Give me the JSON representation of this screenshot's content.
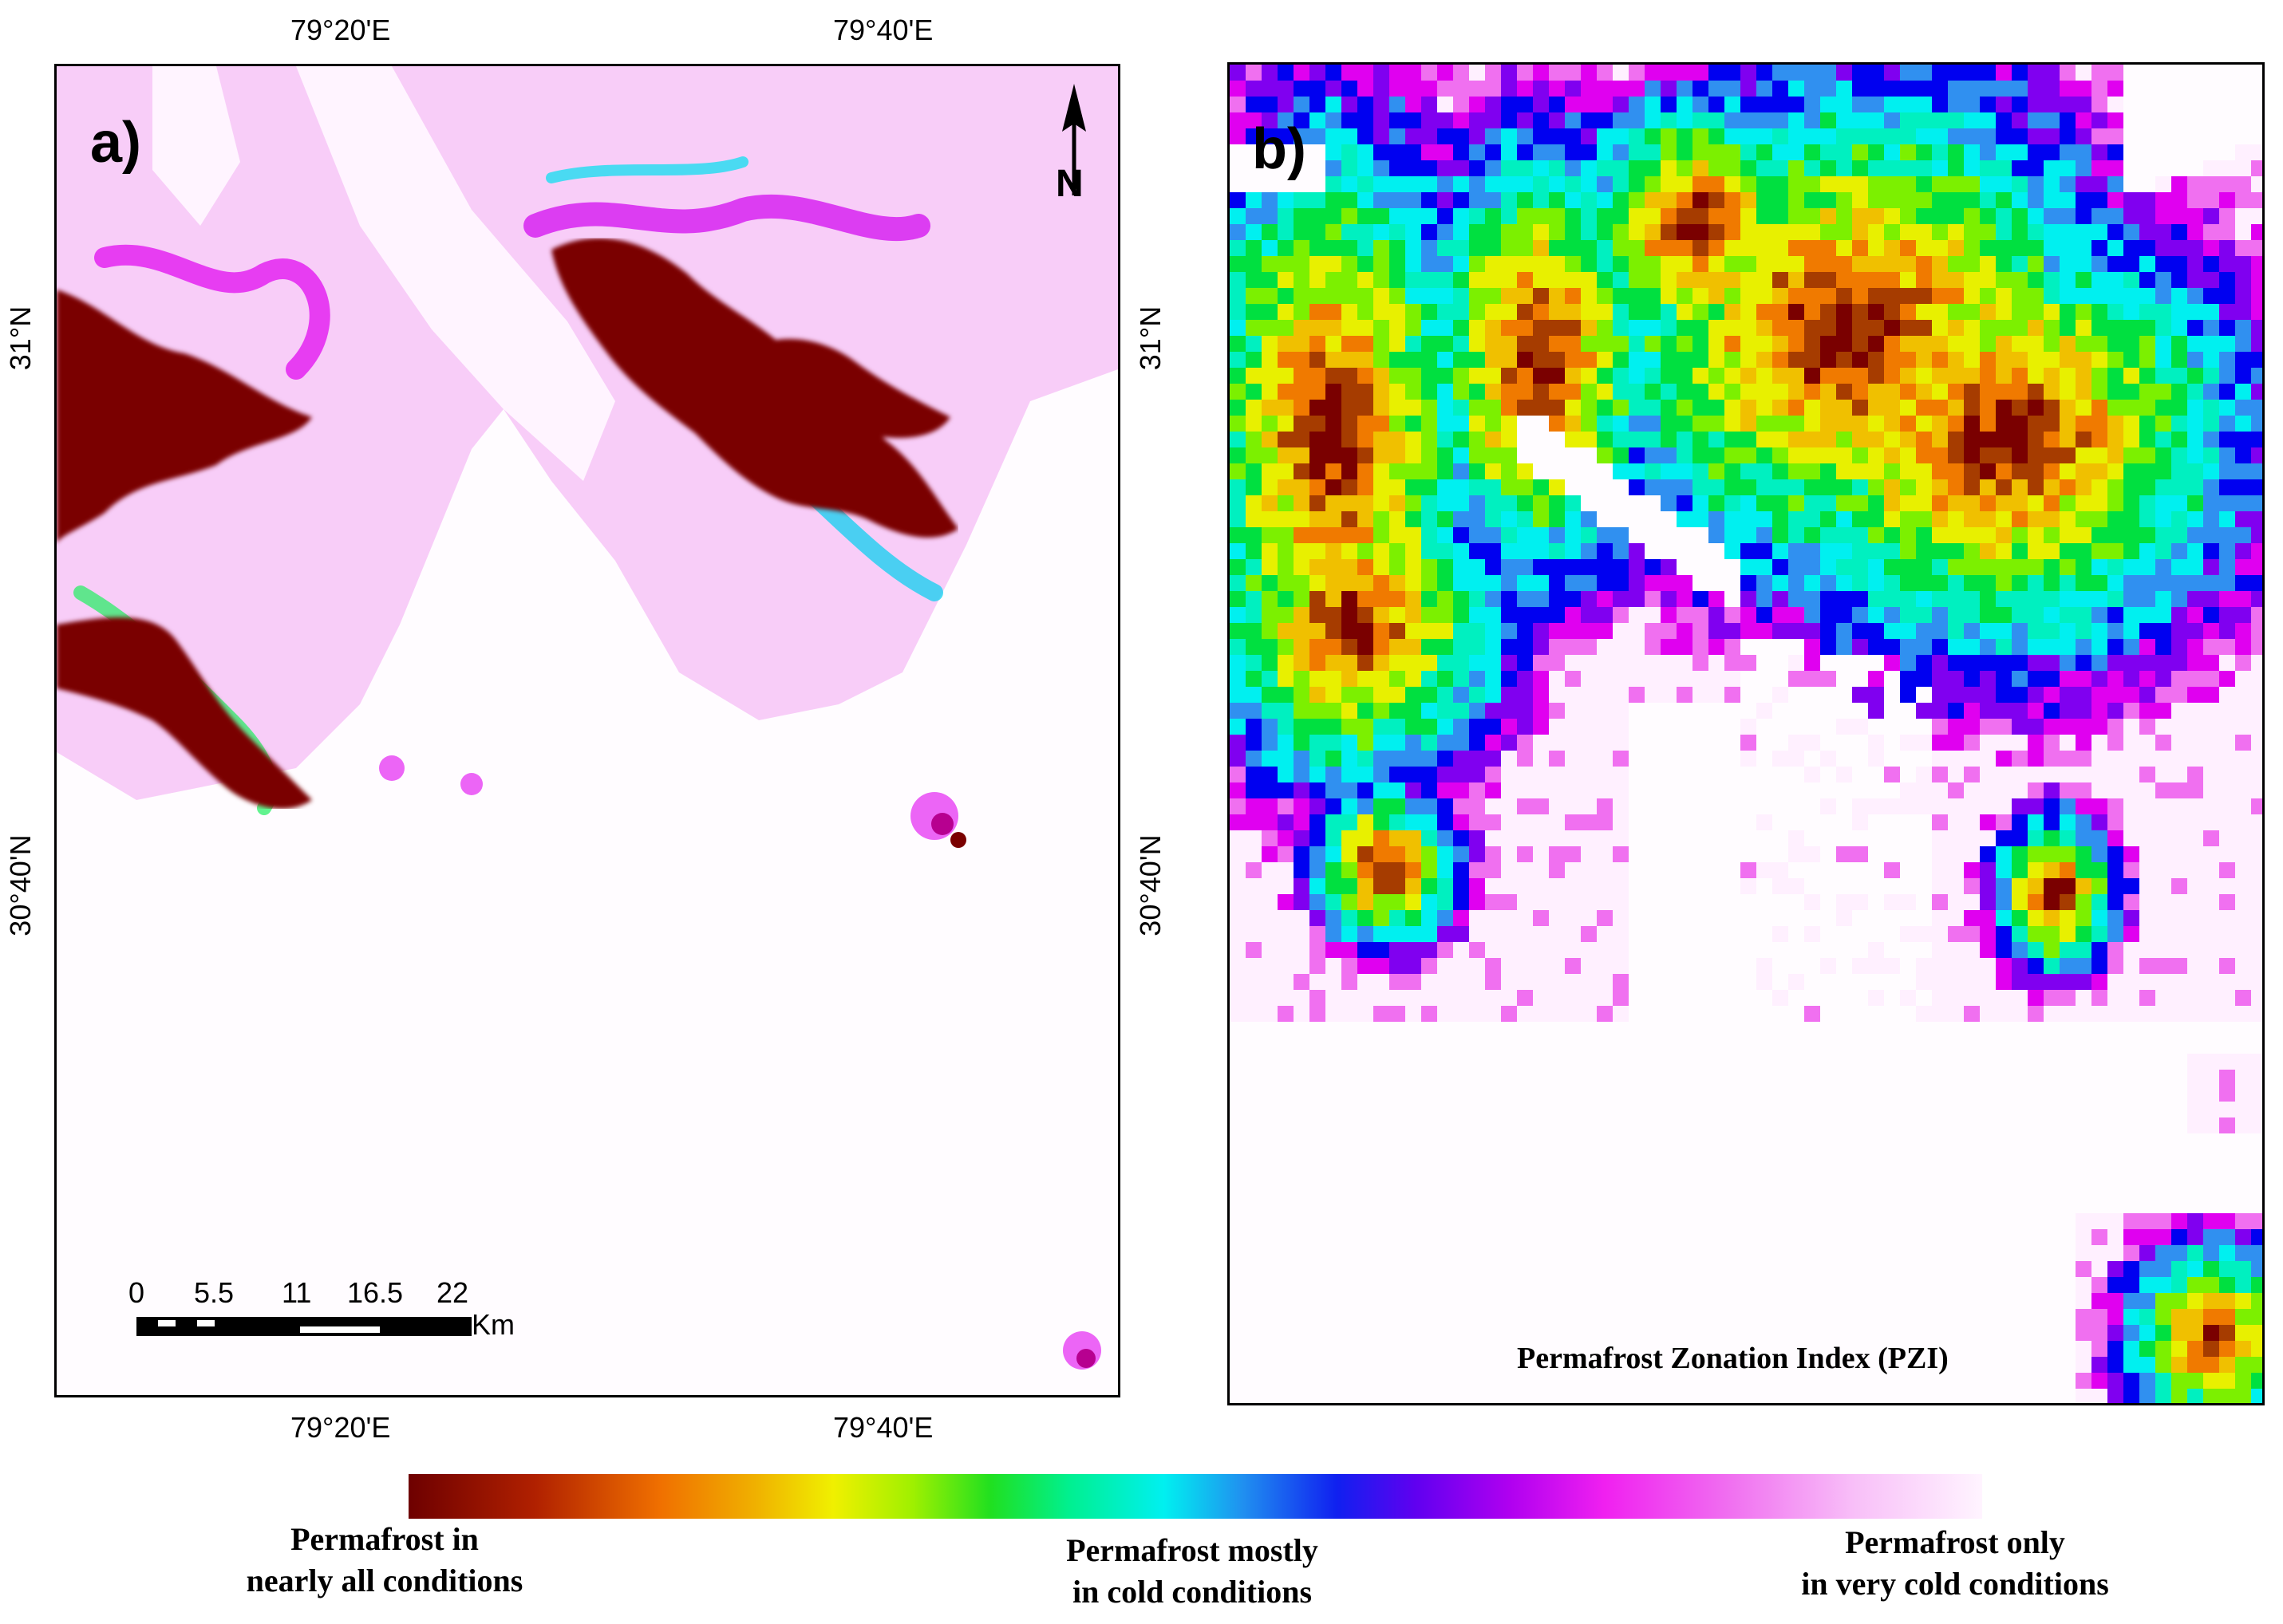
{
  "colors": {
    "ramp": [
      "#7a0000",
      "#a63c00",
      "#f07a00",
      "#f0c000",
      "#e8f000",
      "#7cf000",
      "#00e040",
      "#00f0c0",
      "#00f0f0",
      "#3090f0",
      "#0000f0",
      "#8000f0",
      "#e000f0",
      "#f070f0",
      "#fff0ff"
    ]
  },
  "map_a": {
    "label": "a)",
    "top_ticks": [
      "79°20'E",
      "79°40'E"
    ],
    "bottom_ticks": [
      "79°20'E",
      "79°40'E"
    ],
    "right_ticks": [
      "31°N",
      "30°40'N"
    ],
    "left_ticks": [
      "31°N",
      "30°40'N"
    ],
    "north_letter": "N",
    "scale_bar": {
      "numbers": [
        "0",
        "5.5",
        "11",
        "16.5",
        "22"
      ],
      "unit": "Km"
    }
  },
  "map_b": {
    "label": "b)",
    "caption": "Permafrost Zonation Index (PZI)"
  },
  "legend": {
    "left_line1": "Permafrost in",
    "left_line2": "nearly all conditions",
    "mid_line1": "Permafrost mostly",
    "mid_line2": "in cold conditions",
    "right_line1": "Permafrost only",
    "right_line2": "in very cold conditions"
  }
}
